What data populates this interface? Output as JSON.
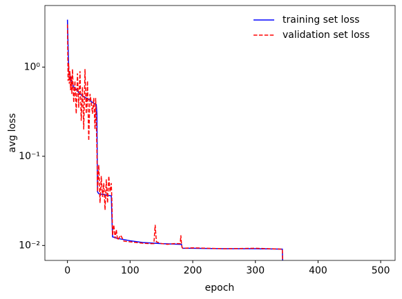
{
  "chart_data": {
    "type": "line",
    "xlabel": "epoch",
    "ylabel": "avg loss",
    "xlim": [
      -36,
      523
    ],
    "xticks": [
      0,
      100,
      200,
      300,
      400,
      500
    ],
    "ylim": [
      0.0068,
      4.9
    ],
    "log_y": true,
    "yticks": [
      {
        "value": 0.01,
        "label": "10⁻²"
      },
      {
        "value": 0.1,
        "label": "10⁻¹"
      },
      {
        "value": 1,
        "label": "10⁰"
      }
    ],
    "legend": "upper right",
    "series": [
      {
        "name": "training set loss",
        "color": "#0000ff",
        "dash": false,
        "x": [
          0,
          2,
          5,
          10,
          15,
          20,
          25,
          30,
          35,
          40,
          46,
          47,
          48,
          50,
          60,
          70,
          71,
          72,
          80,
          100,
          120,
          150,
          180,
          182,
          183,
          184,
          200,
          250,
          300,
          343,
          344
        ],
        "values": [
          3.4,
          0.9,
          0.75,
          0.6,
          0.55,
          0.5,
          0.47,
          0.45,
          0.43,
          0.4,
          0.38,
          0.3,
          0.04,
          0.038,
          0.037,
          0.036,
          0.02,
          0.0125,
          0.012,
          0.0113,
          0.0108,
          0.0105,
          0.0103,
          0.0103,
          0.0095,
          0.0093,
          0.0093,
          0.0092,
          0.0092,
          0.0091,
          0.005
        ]
      },
      {
        "name": "validation set loss",
        "color": "#ff0000",
        "dash": true,
        "x": [
          0,
          1,
          2,
          3,
          4,
          5,
          6,
          7,
          8,
          10,
          12,
          14,
          16,
          18,
          20,
          22,
          24,
          26,
          28,
          30,
          32,
          34,
          36,
          38,
          40,
          42,
          44,
          45,
          46,
          47,
          48,
          50,
          52,
          54,
          56,
          58,
          60,
          62,
          64,
          66,
          68,
          70,
          71,
          72,
          74,
          76,
          78,
          80,
          85,
          90,
          100,
          110,
          120,
          130,
          138,
          140,
          142,
          150,
          160,
          170,
          180,
          181,
          182,
          183,
          184,
          200,
          250,
          300,
          343,
          344
        ],
        "values": [
          3.0,
          0.7,
          1.1,
          0.65,
          0.9,
          0.55,
          0.8,
          0.5,
          0.95,
          0.4,
          0.7,
          0.3,
          0.85,
          0.35,
          0.9,
          0.25,
          0.6,
          0.2,
          0.95,
          0.3,
          0.7,
          0.15,
          0.5,
          0.4,
          0.3,
          0.45,
          0.2,
          0.45,
          0.25,
          0.12,
          0.04,
          0.08,
          0.03,
          0.06,
          0.035,
          0.05,
          0.025,
          0.055,
          0.03,
          0.06,
          0.04,
          0.05,
          0.03,
          0.013,
          0.017,
          0.012,
          0.015,
          0.0115,
          0.013,
          0.0112,
          0.011,
          0.0108,
          0.0106,
          0.0105,
          0.0105,
          0.017,
          0.011,
          0.0105,
          0.0103,
          0.0105,
          0.0105,
          0.013,
          0.0105,
          0.0095,
          0.0093,
          0.0094,
          0.0092,
          0.0093,
          0.0091,
          0.005
        ]
      }
    ]
  }
}
